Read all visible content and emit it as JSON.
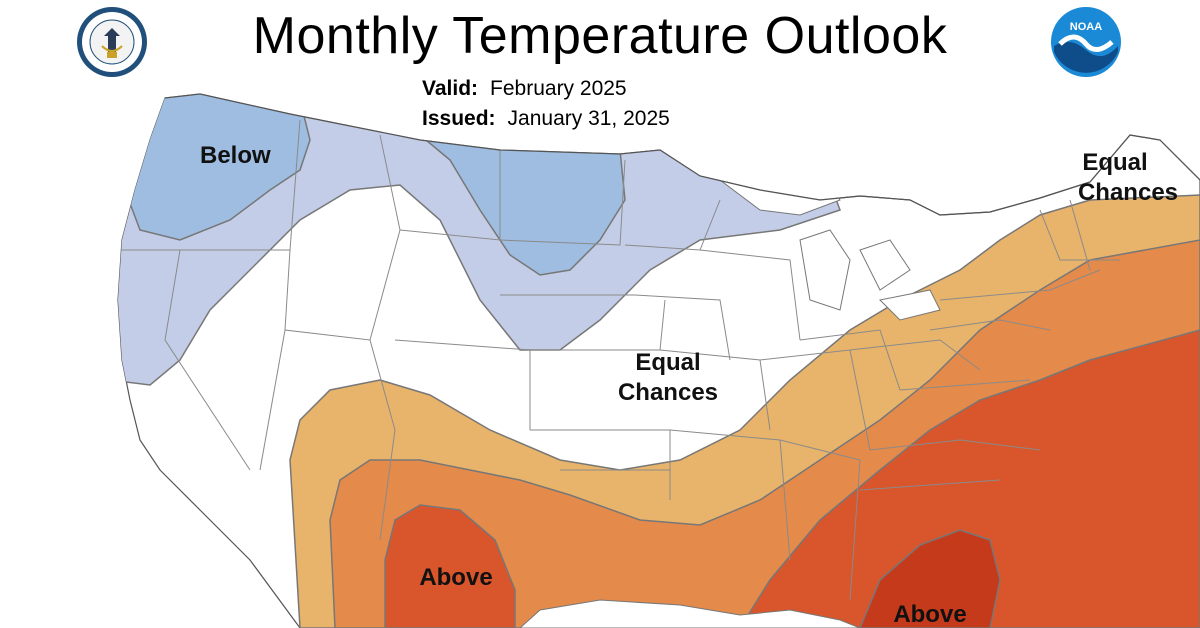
{
  "title": "Monthly Temperature Outlook",
  "valid_label": "Valid:",
  "valid_value": "February 2025",
  "issued_label": "Issued:",
  "issued_value": "January 31, 2025",
  "logos": {
    "left_seal_icon": "department-of-commerce-seal",
    "left_seal_text": "DEPARTMENT OF COMMERCE · UNITED STATES OF AMERICA",
    "right_logo_icon": "noaa-logo",
    "right_logo_text": "NOAA"
  },
  "colors": {
    "below_dark": "#9ebde1",
    "below_light": "#c3cde7",
    "equal_chances": "#ffffff",
    "above_1": "#e8b46b",
    "above_2": "#e48a4a",
    "above_3": "#d9552c",
    "above_4": "#c63a1c",
    "state_lines": "#8a8a8a"
  },
  "labels": {
    "below": "Below",
    "equal_chances_line1": "Equal",
    "equal_chances_line2": "Chances",
    "above": "Above"
  }
}
